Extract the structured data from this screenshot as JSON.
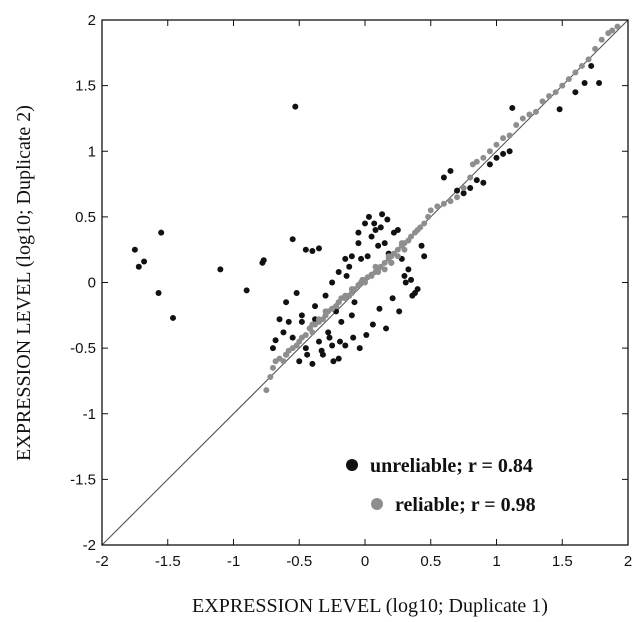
{
  "chart_data": {
    "type": "scatter",
    "title": "",
    "xlabel": "EXPRESSION LEVEL (log10; Duplicate 1)",
    "ylabel": "EXPRESSION LEVEL (log10; Duplicate 2)",
    "xlim": [
      -2,
      2
    ],
    "ylim": [
      -2,
      2
    ],
    "xticks": [
      "-2",
      "-1.5",
      "-1",
      "-0.5",
      "0",
      "0.5",
      "1",
      "1.5",
      "2"
    ],
    "yticks": [
      "-2",
      "-1.5",
      "-1",
      "-0.5",
      "0",
      "0.5",
      "1",
      "1.5",
      "2"
    ],
    "grid": false,
    "reference_line": "y = x",
    "legend_position": "bottom-right",
    "series": [
      {
        "name": "unreliable;  r = 0.84",
        "color": "#111111",
        "x": [
          -1.75,
          -1.72,
          -1.68,
          -1.55,
          -1.57,
          -1.46,
          -1.1,
          -0.9,
          -0.78,
          -0.77,
          -0.53,
          -0.55,
          -0.45,
          -0.4,
          -0.35,
          -0.7,
          -0.68,
          -0.62,
          -0.6,
          -0.58,
          -0.55,
          -0.5,
          -0.48,
          -0.45,
          -0.42,
          -0.4,
          -0.38,
          -0.35,
          -0.32,
          -0.3,
          -0.28,
          -0.25,
          -0.22,
          -0.2,
          -0.18,
          -0.15,
          -0.12,
          -0.1,
          -0.08,
          -0.05,
          -0.03,
          0.0,
          0.02,
          0.05,
          0.08,
          0.1,
          0.12,
          0.15,
          0.18,
          0.2,
          0.22,
          0.25,
          0.28,
          0.3,
          0.33,
          0.35,
          0.38,
          0.4,
          0.43,
          0.45,
          -0.65,
          -0.6,
          -0.52,
          -0.48,
          -0.44,
          -0.38,
          -0.33,
          -0.27,
          -0.24,
          -0.19,
          -0.14,
          -0.09,
          -0.04,
          0.01,
          0.06,
          0.11,
          0.16,
          0.21,
          0.26,
          0.31,
          0.36,
          -0.1,
          -0.05,
          0.03,
          0.07,
          0.13,
          0.17,
          -0.25,
          -0.2,
          -0.15,
          0.6,
          0.65,
          0.7,
          0.75,
          0.8,
          0.85,
          0.9,
          0.95,
          1.0,
          1.05,
          1.1,
          1.12,
          1.48,
          1.6,
          1.67,
          1.72,
          1.78
        ],
        "y": [
          0.25,
          0.12,
          0.16,
          0.38,
          -0.08,
          -0.27,
          0.1,
          -0.06,
          0.15,
          0.17,
          1.34,
          0.33,
          0.25,
          0.24,
          0.26,
          -0.5,
          -0.44,
          -0.38,
          -0.55,
          -0.3,
          -0.42,
          -0.6,
          -0.25,
          -0.5,
          -0.35,
          -0.62,
          -0.18,
          -0.45,
          -0.55,
          -0.1,
          -0.38,
          -0.48,
          -0.22,
          -0.58,
          -0.3,
          -0.48,
          0.12,
          -0.25,
          -0.15,
          0.3,
          0.18,
          0.45,
          0.2,
          0.35,
          0.4,
          0.28,
          0.42,
          0.3,
          0.22,
          0.15,
          0.38,
          0.4,
          0.18,
          0.05,
          0.1,
          0.02,
          -0.08,
          -0.05,
          0.28,
          0.2,
          -0.28,
          -0.15,
          -0.08,
          -0.3,
          -0.55,
          -0.28,
          -0.52,
          -0.42,
          -0.6,
          -0.45,
          0.05,
          -0.42,
          -0.5,
          -0.4,
          -0.32,
          -0.2,
          -0.35,
          -0.12,
          -0.22,
          0.0,
          -0.1,
          0.2,
          0.38,
          0.5,
          0.45,
          0.52,
          0.48,
          0.0,
          0.08,
          0.18,
          0.8,
          0.85,
          0.7,
          0.68,
          0.72,
          0.78,
          0.76,
          0.9,
          0.95,
          0.98,
          1.0,
          1.33,
          1.32,
          1.45,
          1.52,
          1.65,
          1.52
        ]
      },
      {
        "name": "reliable;  r = 0.98",
        "color": "#8e8e8e",
        "x": [
          -0.75,
          -0.72,
          -0.7,
          -0.68,
          -0.65,
          -0.62,
          -0.6,
          -0.58,
          -0.55,
          -0.52,
          -0.5,
          -0.48,
          -0.45,
          -0.42,
          -0.4,
          -0.38,
          -0.35,
          -0.32,
          -0.3,
          -0.28,
          -0.25,
          -0.22,
          -0.2,
          -0.18,
          -0.15,
          -0.12,
          -0.1,
          -0.08,
          -0.05,
          -0.03,
          0.0,
          0.02,
          0.05,
          0.08,
          0.1,
          0.12,
          0.15,
          0.18,
          0.2,
          0.22,
          0.25,
          0.28,
          0.3,
          0.33,
          0.35,
          0.38,
          0.4,
          0.42,
          0.45,
          0.48,
          0.5,
          -0.4,
          -0.35,
          -0.3,
          -0.25,
          -0.2,
          -0.15,
          -0.1,
          -0.05,
          0.0,
          0.05,
          0.1,
          0.15,
          0.2,
          0.25,
          0.3,
          -0.3,
          -0.22,
          -0.12,
          -0.02,
          0.08,
          0.18,
          0.28,
          0.55,
          0.6,
          0.65,
          0.7,
          0.75,
          0.8,
          0.82,
          0.85,
          0.9,
          0.95,
          1.0,
          1.05,
          1.1,
          1.15,
          1.2,
          1.25,
          1.3,
          1.35,
          1.4,
          1.45,
          1.5,
          1.55,
          1.6,
          1.65,
          1.7,
          1.75,
          1.8,
          1.85,
          1.88,
          1.92
        ],
        "y": [
          -0.82,
          -0.72,
          -0.65,
          -0.6,
          -0.58,
          -0.6,
          -0.55,
          -0.52,
          -0.5,
          -0.48,
          -0.45,
          -0.42,
          -0.4,
          -0.35,
          -0.38,
          -0.32,
          -0.3,
          -0.28,
          -0.25,
          -0.22,
          -0.2,
          -0.18,
          -0.15,
          -0.12,
          -0.1,
          -0.1,
          -0.08,
          -0.05,
          -0.02,
          0.0,
          0.02,
          0.04,
          0.06,
          0.08,
          0.1,
          0.12,
          0.15,
          0.18,
          0.2,
          0.22,
          0.25,
          0.28,
          0.3,
          0.32,
          0.35,
          0.38,
          0.4,
          0.42,
          0.45,
          0.5,
          0.55,
          -0.32,
          -0.28,
          -0.25,
          -0.2,
          -0.15,
          -0.12,
          -0.05,
          -0.02,
          0.0,
          0.05,
          0.08,
          0.1,
          0.15,
          0.2,
          0.25,
          -0.22,
          -0.18,
          -0.1,
          0.02,
          0.12,
          0.2,
          0.3,
          0.58,
          0.6,
          0.62,
          0.65,
          0.72,
          0.8,
          0.9,
          0.92,
          0.95,
          1.0,
          1.05,
          1.1,
          1.12,
          1.2,
          1.25,
          1.28,
          1.3,
          1.38,
          1.42,
          1.45,
          1.5,
          1.55,
          1.6,
          1.65,
          1.7,
          1.78,
          1.85,
          1.9,
          1.92,
          1.95
        ]
      }
    ]
  }
}
